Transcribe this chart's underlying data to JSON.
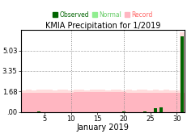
{
  "title": "KMIA Precipitation for 1/2019",
  "xlabel": "January 2019",
  "legend_labels": [
    "Observed",
    "Normal",
    "Record"
  ],
  "legend_colors": [
    "#006400",
    "#90EE90",
    "#FFB6C1"
  ],
  "yticks": [
    0.0,
    1.68,
    3.35,
    5.03
  ],
  "ytick_labels": [
    ".00",
    "1.68",
    "3.35",
    "5.03"
  ],
  "xticks": [
    5,
    10,
    15,
    20,
    25,
    30
  ],
  "xlim": [
    0.5,
    31.5
  ],
  "ylim": [
    0,
    6.7
  ],
  "vlines": [
    10,
    20,
    30
  ],
  "normal_color": "#FFB6C1",
  "record_color": "#FFDDDD",
  "observed_color": "#006400",
  "background_color": "#ffffff",
  "normal_data": [
    1.55,
    1.55,
    1.55,
    1.55,
    1.55,
    1.55,
    1.55,
    1.55,
    1.55,
    1.55,
    1.6,
    1.6,
    1.6,
    1.6,
    1.6,
    1.6,
    1.6,
    1.6,
    1.6,
    1.6,
    1.55,
    1.55,
    1.55,
    1.55,
    1.55,
    1.55,
    1.55,
    1.55,
    1.55,
    1.55,
    1.55
  ],
  "observed_data": [
    0.0,
    0.0,
    0.0,
    0.04,
    0.0,
    0.0,
    0.0,
    0.0,
    0.0,
    0.0,
    0.0,
    0.0,
    0.0,
    0.0,
    0.0,
    0.0,
    0.0,
    0.0,
    0.0,
    0.03,
    0.0,
    0.0,
    0.0,
    0.05,
    0.0,
    0.28,
    0.35,
    0.0,
    0.0,
    0.0,
    6.2
  ],
  "record_data": [
    1.75,
    1.8,
    1.78,
    1.82,
    1.85,
    1.8,
    1.78,
    1.82,
    1.8,
    1.78,
    1.82,
    1.8,
    1.78,
    1.8,
    1.82,
    1.8,
    1.78,
    1.82,
    1.8,
    1.78,
    1.8,
    1.78,
    1.8,
    1.82,
    1.78,
    1.8,
    1.78,
    1.8,
    1.75,
    1.75,
    6.5
  ]
}
